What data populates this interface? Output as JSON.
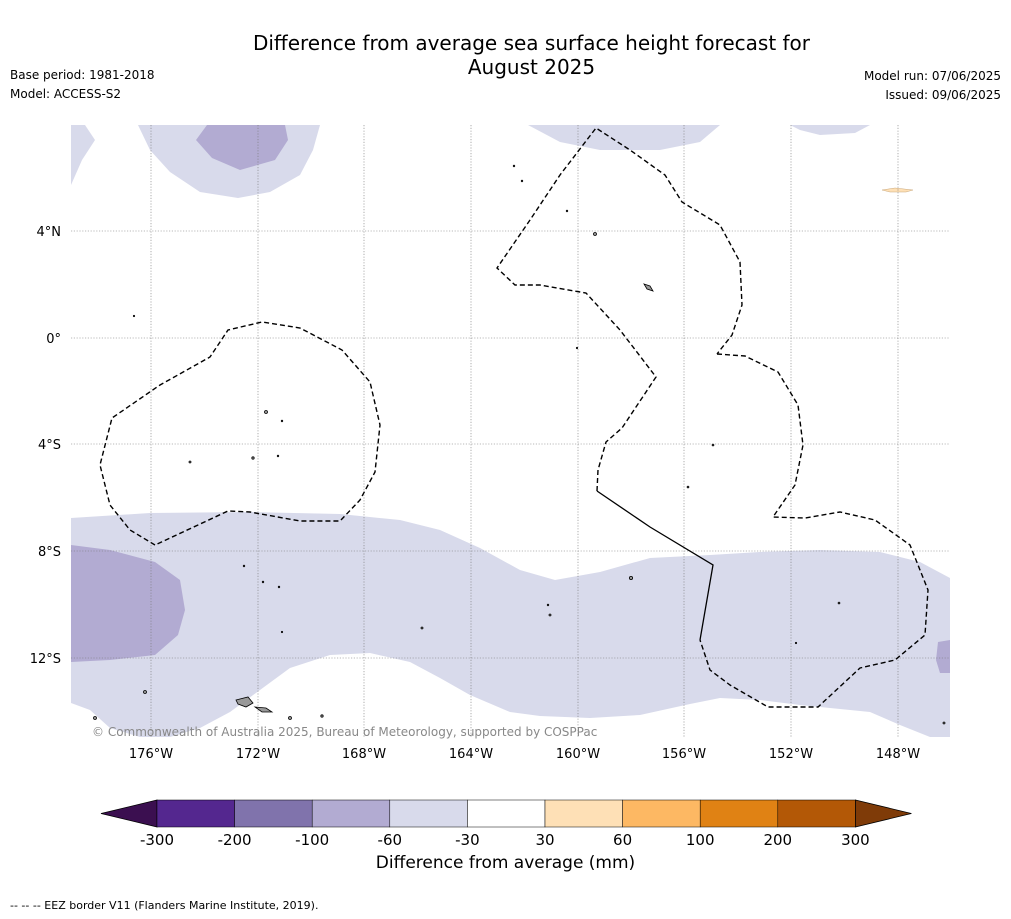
{
  "title_line1": "Difference from average sea surface height forecast for",
  "title_line2": "August 2025",
  "base_period": "Base period: 1981-2018",
  "model": "Model: ACCESS-S2",
  "model_run": "Model run: 07/06/2025",
  "issued": "Issued: 09/06/2025",
  "copyright": "© Commonwealth of Australia 2025, Bureau of Meteorology, supported by COSPPac",
  "lat_labels": [
    "4°N",
    "0°",
    "4°S",
    "8°S",
    "12°S"
  ],
  "lon_labels": [
    "176°W",
    "172°W",
    "168°W",
    "164°W",
    "160°W",
    "156°W",
    "152°W",
    "148°W"
  ],
  "legend": {
    "title": "Difference from average (mm)",
    "tick_labels": [
      "-300",
      "-200",
      "-100",
      "-60",
      "-30",
      "30",
      "60",
      "100",
      "200",
      "300"
    ],
    "colors": [
      "#3b0f50",
      "#54278f",
      "#8073ac",
      "#b2abd2",
      "#d8daeb",
      "#ffffff",
      "#fee0b6",
      "#fdb863",
      "#e08214",
      "#b35806",
      "#7f3b08"
    ]
  },
  "colors": {
    "light_purple": "#d8daeb",
    "mid_purple": "#b2abd2",
    "land_grey": "#999999",
    "light_orange": "#fee0b6",
    "gridline": "#777777"
  },
  "footnote": "--  --  -- EEZ border V11 (Flanders Marine Institute, 2019)."
}
